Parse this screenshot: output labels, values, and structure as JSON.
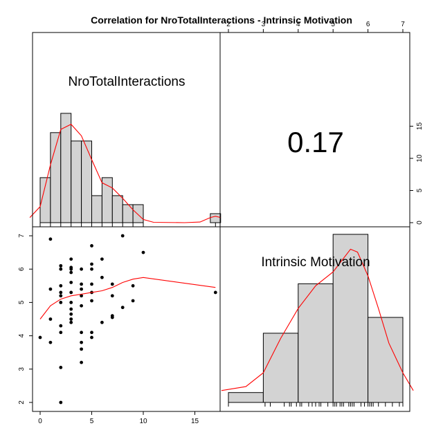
{
  "title": "Correlation  for NroTotalInteractions - Intrinsic Motivation",
  "chart_data": {
    "type": "scatter-matrix",
    "correlation_label": "0.17",
    "correlation": 0.17,
    "variables": [
      "NroTotalInteractions",
      "Intrinsic Motivation"
    ],
    "colors": {
      "fit": "#ff0000",
      "bar_fill": "#d3d3d3",
      "points": "#000000"
    },
    "hist_interactions": {
      "label": "NroTotalInteractions",
      "bins": [
        {
          "from": 0,
          "to": 1,
          "count": 7
        },
        {
          "from": 1,
          "to": 2,
          "count": 14
        },
        {
          "from": 2,
          "to": 3,
          "count": 17
        },
        {
          "from": 3,
          "to": 4,
          "count": 12.7
        },
        {
          "from": 4,
          "to": 5,
          "count": 12.7
        },
        {
          "from": 5,
          "to": 6,
          "count": 4.2
        },
        {
          "from": 6,
          "to": 7,
          "count": 7
        },
        {
          "from": 7,
          "to": 8,
          "count": 4.2
        },
        {
          "from": 8,
          "to": 9,
          "count": 2.8
        },
        {
          "from": 9,
          "to": 10,
          "count": 2.8
        },
        {
          "from": 16.5,
          "to": 17.5,
          "count": 1.4
        }
      ],
      "ylim": [
        0,
        17
      ],
      "yticks": [
        "0",
        "5",
        "10",
        "15"
      ],
      "density": [
        [
          -1,
          0.8
        ],
        [
          0,
          2.5
        ],
        [
          1,
          9
        ],
        [
          2,
          14.5
        ],
        [
          3,
          15.3
        ],
        [
          4,
          13.5
        ],
        [
          5,
          9.8
        ],
        [
          6,
          6.2
        ],
        [
          7,
          5.4
        ],
        [
          8,
          3.8
        ],
        [
          9,
          2
        ],
        [
          10,
          0.5
        ],
        [
          11,
          0.05
        ],
        [
          14,
          0
        ],
        [
          15.5,
          0.1
        ],
        [
          16.5,
          0.8
        ],
        [
          17,
          1
        ],
        [
          17.5,
          0.8
        ]
      ],
      "rug": [
        0,
        1,
        2,
        3,
        4,
        5,
        6,
        7,
        8,
        9,
        10,
        17
      ]
    },
    "hist_motivation": {
      "label": "Intrinsic Motivation",
      "bins": [
        {
          "from": 2,
          "to": 3,
          "count": 1
        },
        {
          "from": 3,
          "to": 4,
          "count": 7
        },
        {
          "from": 4,
          "to": 5,
          "count": 12
        },
        {
          "from": 5,
          "to": 6,
          "count": 17
        },
        {
          "from": 6,
          "to": 7,
          "count": 8.6
        }
      ],
      "ylim": [
        0,
        17
      ],
      "density": [
        [
          1.8,
          1.2
        ],
        [
          2.5,
          1.6
        ],
        [
          3,
          3
        ],
        [
          3.5,
          6.5
        ],
        [
          4,
          9.5
        ],
        [
          4.5,
          11.8
        ],
        [
          5,
          13.2
        ],
        [
          5.5,
          15.5
        ],
        [
          5.7,
          15.2
        ],
        [
          6,
          12.8
        ],
        [
          6.3,
          9.5
        ],
        [
          6.6,
          6
        ],
        [
          7,
          3
        ],
        [
          7.3,
          1.2
        ]
      ],
      "rug": [
        2,
        3.05,
        3.2,
        3.6,
        3.75,
        3.8,
        3.95,
        4.05,
        4.1,
        4.3,
        4.4,
        4.5,
        4.6,
        4.65,
        4.85,
        5,
        5.05,
        5.1,
        5.2,
        5.25,
        5.3,
        5.45,
        5.5,
        5.55,
        5.6,
        5.8,
        5.9,
        6,
        6.05,
        6.1,
        6.15,
        6.3,
        6.5,
        6.7,
        6.9,
        7
      ]
    },
    "scatter": {
      "x_ticks": [
        "0",
        "5",
        "10",
        "15"
      ],
      "y_ticks": [
        "2",
        "3",
        "4",
        "5",
        "6",
        "7"
      ],
      "points": [
        [
          0,
          3.95
        ],
        [
          1,
          6.9
        ],
        [
          1,
          5.4
        ],
        [
          1,
          4.5
        ],
        [
          1,
          3.8
        ],
        [
          2,
          6.1
        ],
        [
          2,
          6.0
        ],
        [
          2,
          5.5
        ],
        [
          2,
          5.3
        ],
        [
          2,
          5.2
        ],
        [
          2,
          5.0
        ],
        [
          2,
          4.3
        ],
        [
          2,
          4.1
        ],
        [
          2,
          3.05
        ],
        [
          2,
          2.0
        ],
        [
          3,
          6.3
        ],
        [
          3,
          6.05
        ],
        [
          3,
          6.0
        ],
        [
          3,
          5.9
        ],
        [
          3,
          5.6
        ],
        [
          3,
          5.3
        ],
        [
          3,
          5.0
        ],
        [
          3,
          4.8
        ],
        [
          3,
          4.65
        ],
        [
          3,
          4.5
        ],
        [
          3,
          4.4
        ],
        [
          4,
          6.0
        ],
        [
          4,
          5.55
        ],
        [
          4,
          5.4
        ],
        [
          4,
          5.2
        ],
        [
          4,
          4.9
        ],
        [
          4,
          4.1
        ],
        [
          4,
          3.8
        ],
        [
          4,
          3.6
        ],
        [
          4,
          3.2
        ],
        [
          5,
          6.7
        ],
        [
          5,
          6.15
        ],
        [
          5,
          6.0
        ],
        [
          5,
          5.55
        ],
        [
          5,
          5.3
        ],
        [
          5,
          5.05
        ],
        [
          5,
          4.1
        ],
        [
          5,
          3.95
        ],
        [
          6,
          6.3
        ],
        [
          6,
          5.75
        ],
        [
          6,
          4.4
        ],
        [
          7,
          5.55
        ],
        [
          7,
          5.2
        ],
        [
          7,
          4.6
        ],
        [
          7,
          4.55
        ],
        [
          8,
          7.0
        ],
        [
          8,
          4.85
        ],
        [
          9,
          5.5
        ],
        [
          9,
          5.05
        ],
        [
          10,
          6.5
        ],
        [
          17,
          5.3
        ]
      ],
      "smooth": [
        [
          0,
          4.5
        ],
        [
          1,
          4.9
        ],
        [
          2,
          5.1
        ],
        [
          3,
          5.2
        ],
        [
          4,
          5.25
        ],
        [
          5,
          5.3
        ],
        [
          6,
          5.35
        ],
        [
          7,
          5.45
        ],
        [
          8,
          5.6
        ],
        [
          9,
          5.7
        ],
        [
          10,
          5.75
        ],
        [
          17,
          5.45
        ]
      ]
    }
  }
}
